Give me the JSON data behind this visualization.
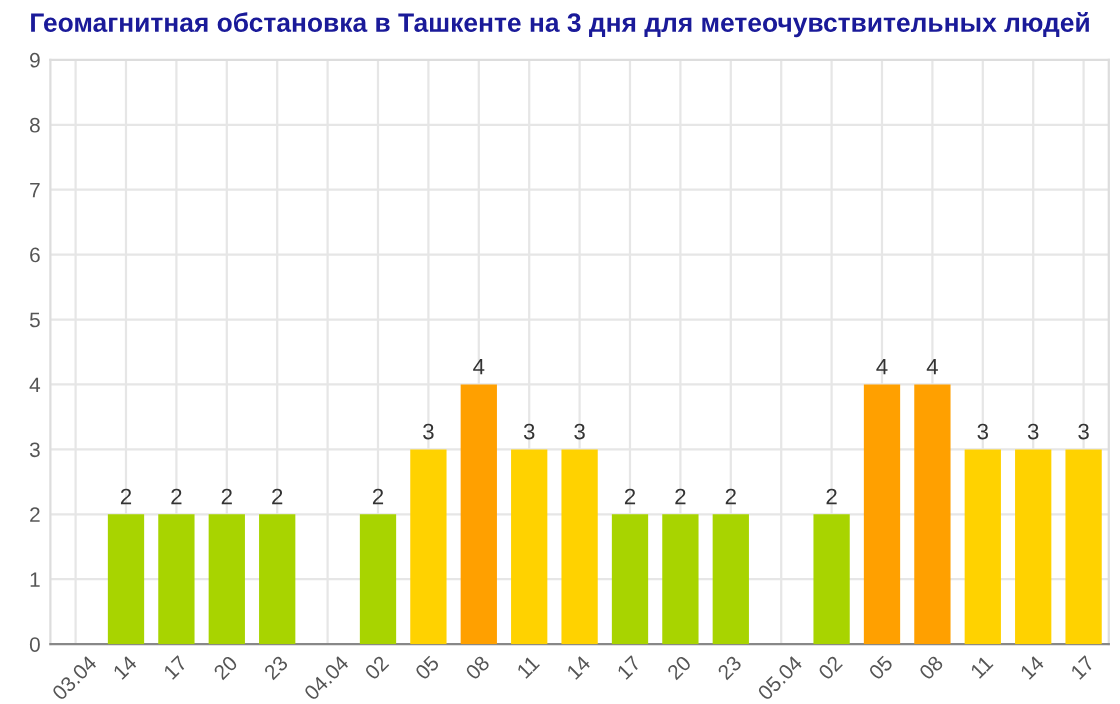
{
  "chart_data": {
    "type": "bar",
    "title": "Геомагнитная обстановка в Ташкенте на 3 дня для метеочувствительных людей",
    "categories": [
      "03.04",
      "14",
      "17",
      "20",
      "23",
      "04.04",
      "02",
      "05",
      "08",
      "11",
      "14",
      "17",
      "20",
      "23",
      "05.04",
      "02",
      "05",
      "08",
      "11",
      "14",
      "17"
    ],
    "values": [
      null,
      2,
      2,
      2,
      2,
      null,
      2,
      3,
      4,
      3,
      3,
      2,
      2,
      2,
      null,
      2,
      4,
      4,
      3,
      3,
      3
    ],
    "colors": [
      null,
      "#a8d400",
      "#a8d400",
      "#a8d400",
      "#a8d400",
      null,
      "#a8d400",
      "#ffd200",
      "#ffa000",
      "#ffd200",
      "#ffd200",
      "#a8d400",
      "#a8d400",
      "#a8d400",
      null,
      "#a8d400",
      "#ffa000",
      "#ffa000",
      "#ffd200",
      "#ffd200",
      "#ffd200"
    ],
    "ylim": [
      0,
      9
    ],
    "yticks": [
      0,
      1,
      2,
      3,
      4,
      5,
      6,
      7,
      8,
      9
    ],
    "grid": true,
    "data_labels": true
  }
}
